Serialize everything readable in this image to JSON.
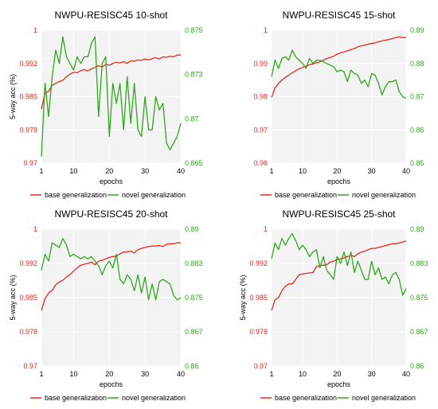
{
  "colors": {
    "base": "#e8281e",
    "novel": "#2ea81b",
    "plot_bg": "#f3f3f3",
    "grid": "#ffffff"
  },
  "chart_data": [
    {
      "type": "line",
      "title": "NWPU-RESISC45 10-shot",
      "xlabel": "epochs",
      "ylabel": "5-way acc (%)",
      "xlim": [
        1,
        40
      ],
      "xticks": [
        1,
        10,
        20,
        30,
        40
      ],
      "ylim_left": [
        0.97,
        1.0
      ],
      "yticks_left": [
        "0.97",
        "0.978",
        "0.985",
        "0.992",
        "1"
      ],
      "ylim_right": [
        0.865,
        0.875
      ],
      "yticks_right": [
        "0.865",
        "0.87",
        "0.873",
        "0.875"
      ],
      "legend_position": "bottom",
      "series": [
        {
          "name": "base generalization",
          "axis": "left",
          "values": [
            0.9822,
            0.9858,
            0.9862,
            0.9876,
            0.988,
            0.9884,
            0.9887,
            0.9895,
            0.9901,
            0.9905,
            0.9904,
            0.9909,
            0.9911,
            0.9908,
            0.9913,
            0.9916,
            0.992,
            0.9917,
            0.9923,
            0.9921,
            0.9925,
            0.9928,
            0.9926,
            0.9929,
            0.9925,
            0.9931,
            0.993,
            0.9933,
            0.9932,
            0.9935,
            0.9933,
            0.9936,
            0.9938,
            0.9935,
            0.994,
            0.9939,
            0.9941,
            0.994,
            0.9944,
            0.9944
          ]
        },
        {
          "name": "novel generalization",
          "axis": "right",
          "values": [
            0.8655,
            0.871,
            0.8685,
            0.8715,
            0.8735,
            0.8725,
            0.8745,
            0.873,
            0.8725,
            0.872,
            0.873,
            0.8725,
            0.873,
            0.873,
            0.874,
            0.8745,
            0.8685,
            0.8725,
            0.873,
            0.867,
            0.871,
            0.8695,
            0.871,
            0.8675,
            0.8715,
            0.868,
            0.871,
            0.8675,
            0.867,
            0.87,
            0.8675,
            0.8675,
            0.87,
            0.869,
            0.8695,
            0.8665,
            0.866,
            0.8665,
            0.867,
            0.868
          ]
        }
      ]
    },
    {
      "type": "line",
      "title": "NWPU-RESISC45 15-shot",
      "xlabel": "epochs",
      "ylabel": "",
      "xlim": [
        1,
        40
      ],
      "xticks": [
        1,
        10,
        20,
        30,
        40
      ],
      "ylim_left": [
        0.96,
        1.0
      ],
      "yticks_left": [
        "0.96",
        "0.97",
        "0.98",
        "0.99",
        "1"
      ],
      "ylim_right": [
        0.85,
        0.89
      ],
      "yticks_right": [
        "0.85",
        "0.86",
        "0.87",
        "0.88",
        "0.89"
      ],
      "legend_position": "bottom",
      "series": [
        {
          "name": "base generalization",
          "axis": "left",
          "values": [
            0.9798,
            0.9826,
            0.984,
            0.985,
            0.9858,
            0.9865,
            0.9872,
            0.9878,
            0.9884,
            0.9888,
            0.9892,
            0.9896,
            0.9899,
            0.9902,
            0.9905,
            0.991,
            0.9915,
            0.9918,
            0.9922,
            0.9928,
            0.9932,
            0.9935,
            0.9938,
            0.9942,
            0.9945,
            0.995,
            0.9953,
            0.9955,
            0.9958,
            0.996,
            0.9962,
            0.9965,
            0.9968,
            0.997,
            0.9972,
            0.9975,
            0.9978,
            0.998,
            0.9978,
            0.9978
          ]
        },
        {
          "name": "novel generalization",
          "axis": "right",
          "values": [
            0.876,
            0.881,
            0.8785,
            0.8815,
            0.882,
            0.881,
            0.884,
            0.882,
            0.881,
            0.88,
            0.8785,
            0.8815,
            0.88,
            0.881,
            0.881,
            0.8805,
            0.88,
            0.8795,
            0.879,
            0.8775,
            0.878,
            0.8775,
            0.8745,
            0.878,
            0.877,
            0.8765,
            0.874,
            0.875,
            0.873,
            0.877,
            0.8765,
            0.874,
            0.8705,
            0.873,
            0.8745,
            0.8745,
            0.875,
            0.8715,
            0.87,
            0.8695
          ]
        }
      ]
    },
    {
      "type": "line",
      "title": "NWPU-RESISC45 20-shot",
      "xlabel": "epochs",
      "ylabel": "5-way acc (%)",
      "xlim": [
        1,
        40
      ],
      "xticks": [
        1,
        10,
        20,
        30,
        40
      ],
      "ylim_left": [
        0.97,
        1.0
      ],
      "yticks_left": [
        "0.97",
        "0.978",
        "0.985",
        "0.992",
        "1"
      ],
      "ylim_right": [
        0.86,
        0.89
      ],
      "yticks_right": [
        "0.86",
        "0.867",
        "0.875",
        "0.883",
        "0.89"
      ],
      "legend_position": "bottom",
      "series": [
        {
          "name": "base generalization",
          "axis": "left",
          "values": [
            0.9822,
            0.9848,
            0.986,
            0.9866,
            0.9878,
            0.9884,
            0.9888,
            0.9895,
            0.9901,
            0.9908,
            0.9915,
            0.9921,
            0.9923,
            0.9925,
            0.9928,
            0.9922,
            0.993,
            0.9932,
            0.9935,
            0.9938,
            0.994,
            0.9941,
            0.9946,
            0.995,
            0.995,
            0.9952,
            0.9948,
            0.9955,
            0.9958,
            0.996,
            0.9962,
            0.9963,
            0.9963,
            0.9964,
            0.9962,
            0.9967,
            0.9968,
            0.9968,
            0.997,
            0.997
          ]
        },
        {
          "name": "novel generalization",
          "axis": "right",
          "values": [
            0.881,
            0.8845,
            0.883,
            0.887,
            0.8865,
            0.886,
            0.888,
            0.8865,
            0.884,
            0.8845,
            0.884,
            0.8835,
            0.884,
            0.8835,
            0.884,
            0.883,
            0.882,
            0.88,
            0.882,
            0.883,
            0.8815,
            0.8845,
            0.879,
            0.878,
            0.88,
            0.879,
            0.8765,
            0.88,
            0.876,
            0.8795,
            0.8745,
            0.878,
            0.8745,
            0.8785,
            0.879,
            0.8785,
            0.878,
            0.8755,
            0.8745,
            0.875
          ]
        }
      ]
    },
    {
      "type": "line",
      "title": "NWPU-RESISC45 25-shot",
      "xlabel": "epochs",
      "ylabel": "5-way acc (%)",
      "xlim": [
        1,
        40
      ],
      "xticks": [
        1,
        10,
        20,
        30,
        40
      ],
      "ylim_left": [
        0.97,
        1.0
      ],
      "yticks_left": [
        "0.97",
        "0.978",
        "0.985",
        "0.992",
        "1"
      ],
      "ylim_right": [
        0.86,
        0.89
      ],
      "yticks_right": [
        "0.86",
        "0.867",
        "0.875",
        "0.883",
        "0.89"
      ],
      "legend_position": "bottom",
      "series": [
        {
          "name": "base generalization",
          "axis": "left",
          "values": [
            0.9822,
            0.9845,
            0.985,
            0.9865,
            0.9875,
            0.988,
            0.988,
            0.989,
            0.99,
            0.9902,
            0.9903,
            0.9904,
            0.9905,
            0.9918,
            0.992,
            0.9921,
            0.9922,
            0.9928,
            0.993,
            0.9933,
            0.9935,
            0.9937,
            0.994,
            0.9943,
            0.994,
            0.9946,
            0.995,
            0.9952,
            0.9955,
            0.9958,
            0.9958,
            0.996,
            0.9962,
            0.9964,
            0.9966,
            0.9968,
            0.9968,
            0.997,
            0.9972,
            0.9974
          ]
        },
        {
          "name": "novel generalization",
          "axis": "right",
          "values": [
            0.8835,
            0.887,
            0.8855,
            0.888,
            0.8865,
            0.888,
            0.889,
            0.8875,
            0.8855,
            0.8865,
            0.8855,
            0.884,
            0.885,
            0.8855,
            0.8815,
            0.884,
            0.881,
            0.88,
            0.879,
            0.884,
            0.8825,
            0.885,
            0.882,
            0.885,
            0.8805,
            0.883,
            0.881,
            0.879,
            0.879,
            0.883,
            0.88,
            0.8815,
            0.879,
            0.8795,
            0.878,
            0.88,
            0.8805,
            0.879,
            0.8755,
            0.877
          ]
        }
      ]
    }
  ]
}
